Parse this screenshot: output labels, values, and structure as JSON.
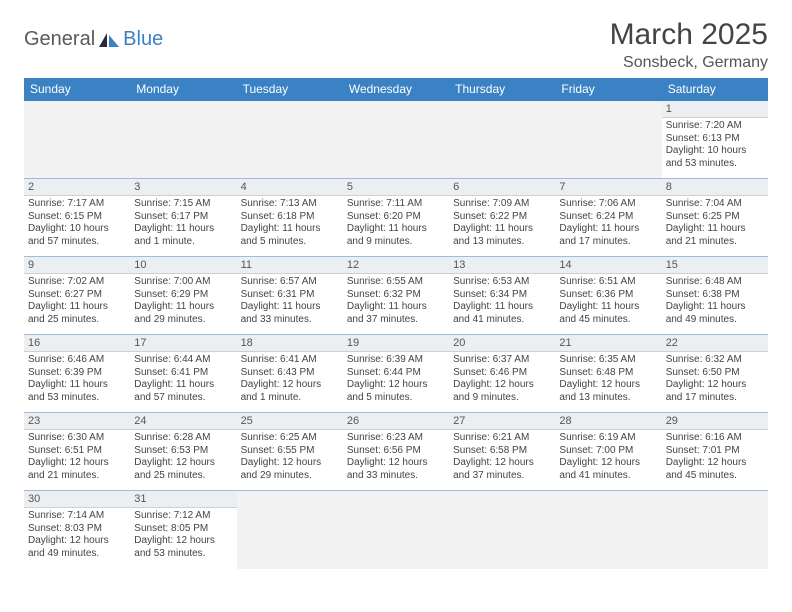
{
  "brand": {
    "part1": "General",
    "part2": "Blue"
  },
  "title": "March 2025",
  "location": "Sonsbeck, Germany",
  "day_headers": [
    "Sunday",
    "Monday",
    "Tuesday",
    "Wednesday",
    "Thursday",
    "Friday",
    "Saturday"
  ],
  "colors": {
    "header_bg": "#3b82c4",
    "header_fg": "#ffffff",
    "daynum_bg": "#eceff1",
    "empty_bg": "#f2f2f2",
    "border": "#3b82c4"
  },
  "weeks": [
    [
      null,
      null,
      null,
      null,
      null,
      null,
      {
        "n": "1",
        "sr": "Sunrise: 7:20 AM",
        "ss": "Sunset: 6:13 PM",
        "dl1": "Daylight: 10 hours",
        "dl2": "and 53 minutes."
      }
    ],
    [
      {
        "n": "2",
        "sr": "Sunrise: 7:17 AM",
        "ss": "Sunset: 6:15 PM",
        "dl1": "Daylight: 10 hours",
        "dl2": "and 57 minutes."
      },
      {
        "n": "3",
        "sr": "Sunrise: 7:15 AM",
        "ss": "Sunset: 6:17 PM",
        "dl1": "Daylight: 11 hours",
        "dl2": "and 1 minute."
      },
      {
        "n": "4",
        "sr": "Sunrise: 7:13 AM",
        "ss": "Sunset: 6:18 PM",
        "dl1": "Daylight: 11 hours",
        "dl2": "and 5 minutes."
      },
      {
        "n": "5",
        "sr": "Sunrise: 7:11 AM",
        "ss": "Sunset: 6:20 PM",
        "dl1": "Daylight: 11 hours",
        "dl2": "and 9 minutes."
      },
      {
        "n": "6",
        "sr": "Sunrise: 7:09 AM",
        "ss": "Sunset: 6:22 PM",
        "dl1": "Daylight: 11 hours",
        "dl2": "and 13 minutes."
      },
      {
        "n": "7",
        "sr": "Sunrise: 7:06 AM",
        "ss": "Sunset: 6:24 PM",
        "dl1": "Daylight: 11 hours",
        "dl2": "and 17 minutes."
      },
      {
        "n": "8",
        "sr": "Sunrise: 7:04 AM",
        "ss": "Sunset: 6:25 PM",
        "dl1": "Daylight: 11 hours",
        "dl2": "and 21 minutes."
      }
    ],
    [
      {
        "n": "9",
        "sr": "Sunrise: 7:02 AM",
        "ss": "Sunset: 6:27 PM",
        "dl1": "Daylight: 11 hours",
        "dl2": "and 25 minutes."
      },
      {
        "n": "10",
        "sr": "Sunrise: 7:00 AM",
        "ss": "Sunset: 6:29 PM",
        "dl1": "Daylight: 11 hours",
        "dl2": "and 29 minutes."
      },
      {
        "n": "11",
        "sr": "Sunrise: 6:57 AM",
        "ss": "Sunset: 6:31 PM",
        "dl1": "Daylight: 11 hours",
        "dl2": "and 33 minutes."
      },
      {
        "n": "12",
        "sr": "Sunrise: 6:55 AM",
        "ss": "Sunset: 6:32 PM",
        "dl1": "Daylight: 11 hours",
        "dl2": "and 37 minutes."
      },
      {
        "n": "13",
        "sr": "Sunrise: 6:53 AM",
        "ss": "Sunset: 6:34 PM",
        "dl1": "Daylight: 11 hours",
        "dl2": "and 41 minutes."
      },
      {
        "n": "14",
        "sr": "Sunrise: 6:51 AM",
        "ss": "Sunset: 6:36 PM",
        "dl1": "Daylight: 11 hours",
        "dl2": "and 45 minutes."
      },
      {
        "n": "15",
        "sr": "Sunrise: 6:48 AM",
        "ss": "Sunset: 6:38 PM",
        "dl1": "Daylight: 11 hours",
        "dl2": "and 49 minutes."
      }
    ],
    [
      {
        "n": "16",
        "sr": "Sunrise: 6:46 AM",
        "ss": "Sunset: 6:39 PM",
        "dl1": "Daylight: 11 hours",
        "dl2": "and 53 minutes."
      },
      {
        "n": "17",
        "sr": "Sunrise: 6:44 AM",
        "ss": "Sunset: 6:41 PM",
        "dl1": "Daylight: 11 hours",
        "dl2": "and 57 minutes."
      },
      {
        "n": "18",
        "sr": "Sunrise: 6:41 AM",
        "ss": "Sunset: 6:43 PM",
        "dl1": "Daylight: 12 hours",
        "dl2": "and 1 minute."
      },
      {
        "n": "19",
        "sr": "Sunrise: 6:39 AM",
        "ss": "Sunset: 6:44 PM",
        "dl1": "Daylight: 12 hours",
        "dl2": "and 5 minutes."
      },
      {
        "n": "20",
        "sr": "Sunrise: 6:37 AM",
        "ss": "Sunset: 6:46 PM",
        "dl1": "Daylight: 12 hours",
        "dl2": "and 9 minutes."
      },
      {
        "n": "21",
        "sr": "Sunrise: 6:35 AM",
        "ss": "Sunset: 6:48 PM",
        "dl1": "Daylight: 12 hours",
        "dl2": "and 13 minutes."
      },
      {
        "n": "22",
        "sr": "Sunrise: 6:32 AM",
        "ss": "Sunset: 6:50 PM",
        "dl1": "Daylight: 12 hours",
        "dl2": "and 17 minutes."
      }
    ],
    [
      {
        "n": "23",
        "sr": "Sunrise: 6:30 AM",
        "ss": "Sunset: 6:51 PM",
        "dl1": "Daylight: 12 hours",
        "dl2": "and 21 minutes."
      },
      {
        "n": "24",
        "sr": "Sunrise: 6:28 AM",
        "ss": "Sunset: 6:53 PM",
        "dl1": "Daylight: 12 hours",
        "dl2": "and 25 minutes."
      },
      {
        "n": "25",
        "sr": "Sunrise: 6:25 AM",
        "ss": "Sunset: 6:55 PM",
        "dl1": "Daylight: 12 hours",
        "dl2": "and 29 minutes."
      },
      {
        "n": "26",
        "sr": "Sunrise: 6:23 AM",
        "ss": "Sunset: 6:56 PM",
        "dl1": "Daylight: 12 hours",
        "dl2": "and 33 minutes."
      },
      {
        "n": "27",
        "sr": "Sunrise: 6:21 AM",
        "ss": "Sunset: 6:58 PM",
        "dl1": "Daylight: 12 hours",
        "dl2": "and 37 minutes."
      },
      {
        "n": "28",
        "sr": "Sunrise: 6:19 AM",
        "ss": "Sunset: 7:00 PM",
        "dl1": "Daylight: 12 hours",
        "dl2": "and 41 minutes."
      },
      {
        "n": "29",
        "sr": "Sunrise: 6:16 AM",
        "ss": "Sunset: 7:01 PM",
        "dl1": "Daylight: 12 hours",
        "dl2": "and 45 minutes."
      }
    ],
    [
      {
        "n": "30",
        "sr": "Sunrise: 7:14 AM",
        "ss": "Sunset: 8:03 PM",
        "dl1": "Daylight: 12 hours",
        "dl2": "and 49 minutes."
      },
      {
        "n": "31",
        "sr": "Sunrise: 7:12 AM",
        "ss": "Sunset: 8:05 PM",
        "dl1": "Daylight: 12 hours",
        "dl2": "and 53 minutes."
      },
      null,
      null,
      null,
      null,
      null
    ]
  ]
}
